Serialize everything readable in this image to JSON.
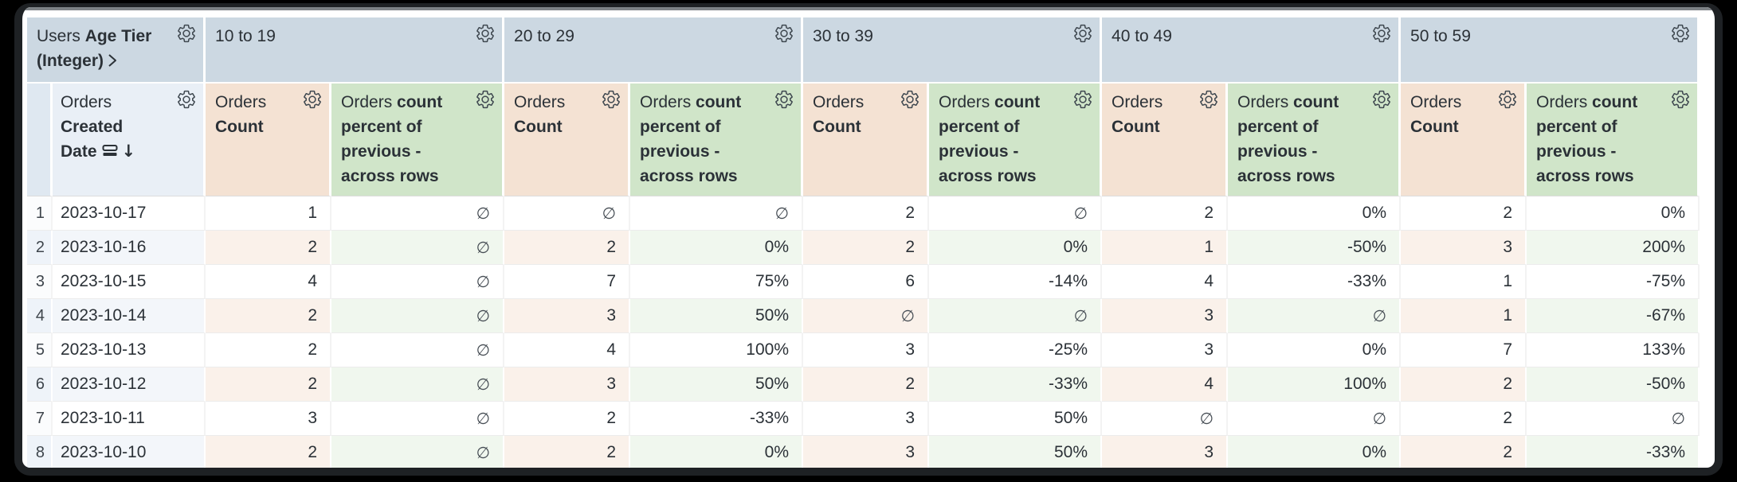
{
  "pivot_field": {
    "view": "Users",
    "field": "Age Tier (Integer)"
  },
  "pivot_values": [
    "10 to 19",
    "20 to 29",
    "30 to 39",
    "40 to 49",
    "50 to 59"
  ],
  "row_field": {
    "view": "Orders",
    "field": "Created Date",
    "sort_direction": "descending"
  },
  "measures": [
    {
      "view": "Orders",
      "field": "Count"
    },
    {
      "view": "Orders",
      "field": "count percent of previous - across rows"
    }
  ],
  "null_symbol": "∅",
  "rows": [
    {
      "num": "1",
      "date": "2023-10-17",
      "cells": [
        "1",
        "∅",
        "∅",
        "∅",
        "2",
        "∅",
        "2",
        "0%",
        "2",
        "0%"
      ]
    },
    {
      "num": "2",
      "date": "2023-10-16",
      "cells": [
        "2",
        "∅",
        "2",
        "0%",
        "2",
        "0%",
        "1",
        "-50%",
        "3",
        "200%"
      ]
    },
    {
      "num": "3",
      "date": "2023-10-15",
      "cells": [
        "4",
        "∅",
        "7",
        "75%",
        "6",
        "-14%",
        "4",
        "-33%",
        "1",
        "-75%"
      ]
    },
    {
      "num": "4",
      "date": "2023-10-14",
      "cells": [
        "2",
        "∅",
        "3",
        "50%",
        "∅",
        "∅",
        "3",
        "∅",
        "1",
        "-67%"
      ]
    },
    {
      "num": "5",
      "date": "2023-10-13",
      "cells": [
        "2",
        "∅",
        "4",
        "100%",
        "3",
        "-25%",
        "3",
        "0%",
        "7",
        "133%"
      ]
    },
    {
      "num": "6",
      "date": "2023-10-12",
      "cells": [
        "2",
        "∅",
        "3",
        "50%",
        "2",
        "-33%",
        "4",
        "100%",
        "2",
        "-50%"
      ]
    },
    {
      "num": "7",
      "date": "2023-10-11",
      "cells": [
        "3",
        "∅",
        "2",
        "-33%",
        "3",
        "50%",
        "∅",
        "∅",
        "2",
        "∅"
      ]
    },
    {
      "num": "8",
      "date": "2023-10-10",
      "cells": [
        "2",
        "∅",
        "2",
        "0%",
        "3",
        "50%",
        "3",
        "0%",
        "2",
        "-33%"
      ]
    }
  ],
  "colors": {
    "text": "#2b3137",
    "pivot_header_bg": "#ccd8e2",
    "rownum_header_bg": "#dfe8f1",
    "date_header_bg": "#e9eff6",
    "count_header_bg": "#f4e2d3",
    "pct_header_bg": "#d0e5c9",
    "rownum_col_bg": "#fbfcfd",
    "row_alt_default_bg": "#f3f6fa",
    "row_alt_rownum_bg": "#eef3f9",
    "row_alt_count_bg": "#faf1ea",
    "row_alt_pct_bg": "#f0f7ee",
    "grid_line": "#ececec"
  }
}
